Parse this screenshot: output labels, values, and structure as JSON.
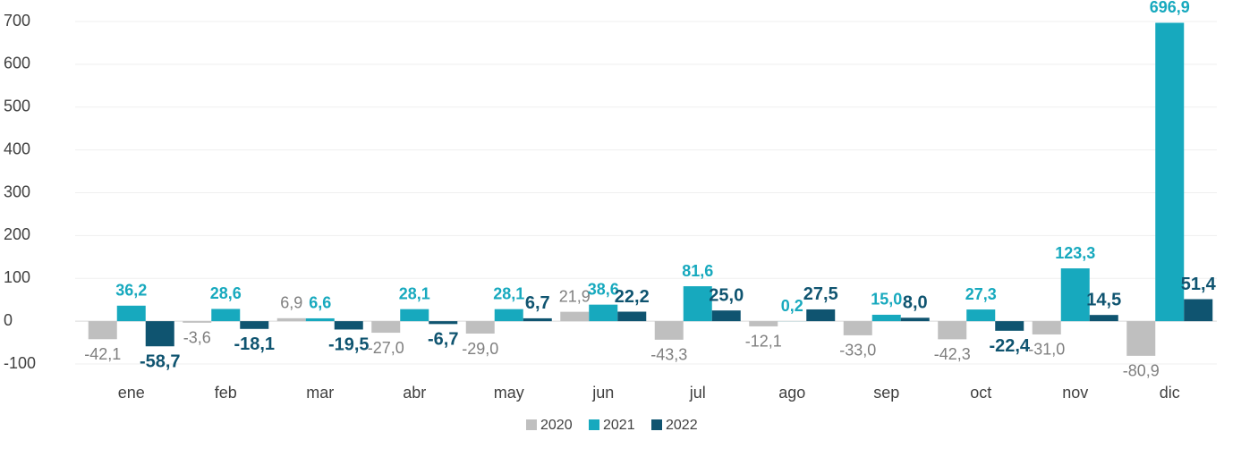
{
  "chart_data": {
    "type": "bar",
    "categories": [
      "ene",
      "feb",
      "mar",
      "abr",
      "may",
      "jun",
      "jul",
      "ago",
      "sep",
      "oct",
      "nov",
      "dic"
    ],
    "series": [
      {
        "name": "2020",
        "color": "#bfbfbf",
        "values": [
          -42.1,
          -3.6,
          6.9,
          -27.0,
          -29.0,
          21.9,
          -43.3,
          -12.1,
          -33.0,
          -42.3,
          -31.0,
          -80.9
        ],
        "value_labels": [
          "-42,1",
          "-3,6",
          "6,9",
          "-27,0",
          "-29,0",
          "21,9",
          "-43,3",
          "-12,1",
          "-33,0",
          "-42,3",
          "-31,0",
          "-80,9"
        ]
      },
      {
        "name": "2021",
        "color": "#17a9be",
        "values": [
          36.2,
          28.6,
          6.6,
          28.1,
          28.1,
          38.6,
          81.6,
          0.2,
          15.0,
          27.3,
          123.3,
          696.9
        ],
        "value_labels": [
          "36,2",
          "28,6",
          "6,6",
          "28,1",
          "28,1",
          "38,6",
          "81,6",
          "0,2",
          "15,0",
          "27,3",
          "123,3",
          "696,9"
        ]
      },
      {
        "name": "2022",
        "color": "#0f5470",
        "values": [
          -58.7,
          -18.1,
          -19.5,
          -6.7,
          6.7,
          22.2,
          25.0,
          27.5,
          8.0,
          -22.4,
          14.5,
          51.4
        ],
        "value_labels": [
          "-58,7",
          "-18,1",
          "-19,5",
          "-6,7",
          "6,7",
          "22,2",
          "25,0",
          "27,5",
          "8,0",
          "-22,4",
          "14,5",
          "51,4"
        ]
      }
    ],
    "ylim": [
      -100,
      700
    ],
    "yticks": [
      -100,
      0,
      100,
      200,
      300,
      400,
      500,
      600,
      700
    ],
    "grid": true,
    "legend": "bottom"
  }
}
